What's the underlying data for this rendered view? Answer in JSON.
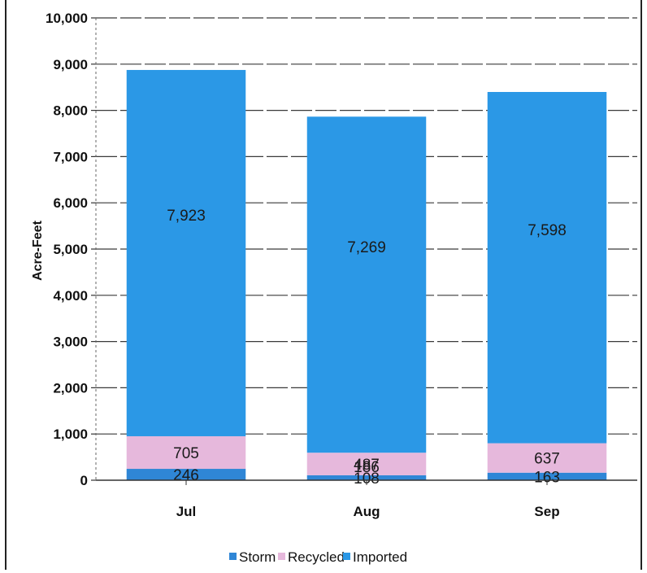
{
  "chart_data": {
    "type": "bar",
    "stacked": true,
    "ylabel": "Acre-Feet",
    "ylim": [
      0,
      10000
    ],
    "yticks": [
      "0",
      "1,000",
      "2,000",
      "3,000",
      "4,000",
      "5,000",
      "6,000",
      "7,000",
      "8,000",
      "9,000",
      "10,000"
    ],
    "categories": [
      "Jul",
      "Aug",
      "Sep"
    ],
    "series": [
      {
        "name": "Storm",
        "values": [
          246,
          108,
          163
        ],
        "labels": [
          "246",
          "108",
          "163"
        ],
        "color": "#2f86d6"
      },
      {
        "name": "Recycled",
        "values": [
          705,
          487,
          637
        ],
        "labels": [
          "705",
          "487",
          "637"
        ],
        "color": "#e6b8dc"
      },
      {
        "name": "Imported",
        "values": [
          7923,
          7269,
          7598
        ],
        "labels": [
          "7,923",
          "7,269",
          "7,598"
        ],
        "color": "#2b98e6"
      }
    ],
    "extra_labels": [
      {
        "category": "Aug",
        "text": "186"
      }
    ],
    "legend_position": "bottom",
    "grid": true
  }
}
